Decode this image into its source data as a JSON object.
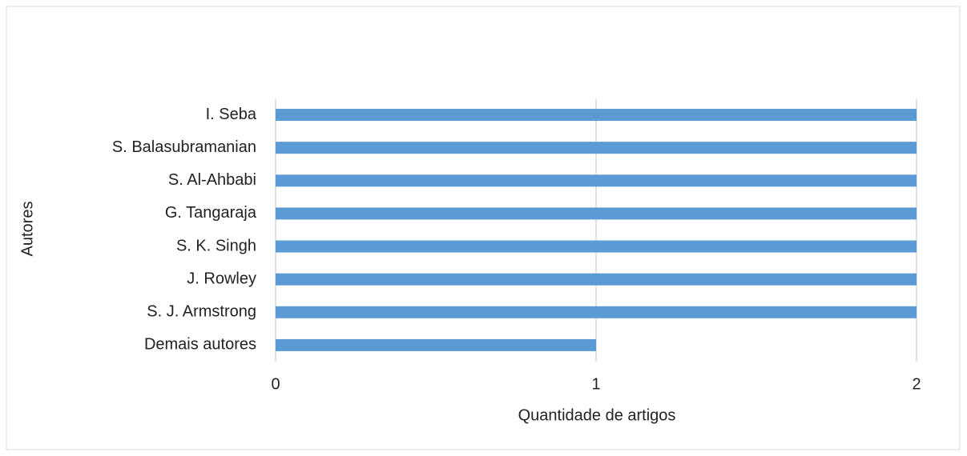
{
  "chart_data": {
    "type": "hbar",
    "categories": [
      "I. Seba",
      "S. Balasubramanian",
      "S. Al-Ahbabi",
      "G. Tangaraja",
      "S. K. Singh",
      "J. Rowley",
      "S. J. Armstrong",
      "Demais autores"
    ],
    "values": [
      2,
      2,
      2,
      2,
      2,
      2,
      2,
      1
    ],
    "color": "#5b9bd5",
    "xlim": [
      0,
      2
    ],
    "xticks": [
      0,
      1,
      2
    ],
    "grid": true,
    "xlabel": "Quantidade de artigos",
    "ylabel": "Autores"
  }
}
